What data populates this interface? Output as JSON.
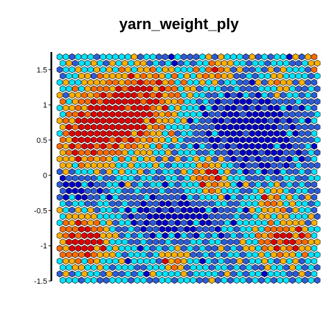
{
  "chart_data": {
    "type": "heatmap",
    "title": "yarn_weight_ply",
    "xlabel": "",
    "ylabel": "",
    "ylim": [
      -1.5,
      1.75
    ],
    "y_ticks": [
      {
        "value": 1.5,
        "label": "1.5"
      },
      {
        "value": 1,
        "label": "1"
      },
      {
        "value": 0.5,
        "label": "0.5"
      },
      {
        "value": 0,
        "label": "0"
      },
      {
        "value": -0.5,
        "label": "-0.5"
      },
      {
        "value": -1,
        "label": "-1"
      },
      {
        "value": -1.5,
        "label": "-1.5"
      }
    ],
    "colorscale": [
      "#0000cc",
      "#2a5cdc",
      "#00e5ff",
      "#ffb000",
      "#ff6a00",
      "#e00000"
    ],
    "grid": {
      "cols": 42,
      "rows": 36
    },
    "legend": "none"
  }
}
